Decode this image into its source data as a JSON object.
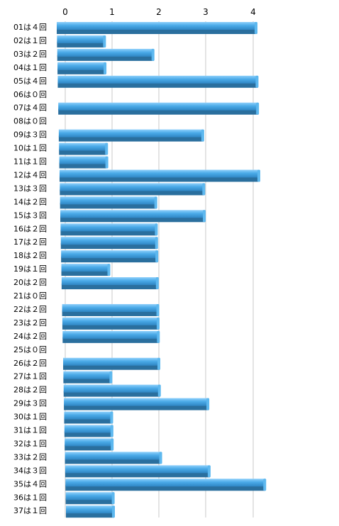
{
  "chart_data": {
    "type": "bar",
    "orientation": "horizontal",
    "categories": [
      "01は４回",
      "02は１回",
      "03は２回",
      "04は１回",
      "05は４回",
      "06は０回",
      "07は４回",
      "08は０回",
      "09は３回",
      "10は１回",
      "11は１回",
      "12は４回",
      "13は３回",
      "14は２回",
      "15は３回",
      "16は２回",
      "17は２回",
      "18は２回",
      "19は１回",
      "20は２回",
      "21は０回",
      "22は２回",
      "23は２回",
      "24は２回",
      "25は０回",
      "26は２回",
      "27は１回",
      "28は２回",
      "29は３回",
      "30は１回",
      "31は１回",
      "32は１回",
      "33は２回",
      "34は３回",
      "35は４回",
      "36は１回",
      "37は１回"
    ],
    "values": [
      4,
      1,
      2,
      1,
      4,
      0,
      4,
      0,
      3,
      1,
      1,
      4,
      3,
      2,
      3,
      2,
      2,
      2,
      1,
      2,
      0,
      2,
      2,
      2,
      0,
      2,
      1,
      2,
      3,
      1,
      1,
      1,
      2,
      3,
      4,
      1,
      1
    ],
    "x_ticks": [
      "0",
      "1",
      "2",
      "3",
      "4"
    ],
    "xlim": [
      0,
      4
    ],
    "grid": true,
    "bar_color": "#4aaae8",
    "bar_edge_color": "#2a6f9e",
    "grid_color": "#c8c8c8"
  }
}
